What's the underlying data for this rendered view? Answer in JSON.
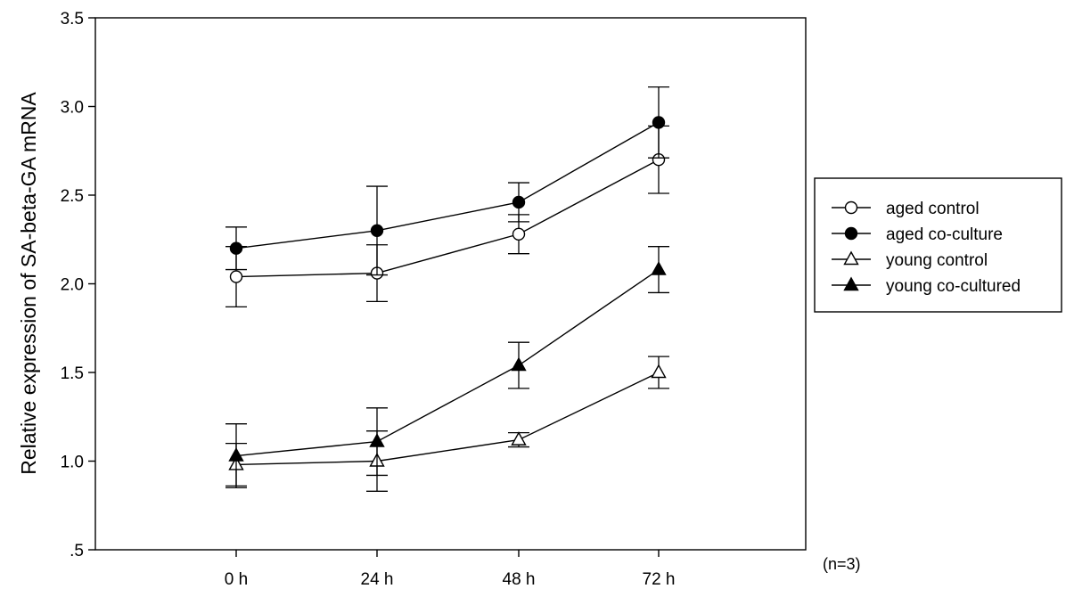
{
  "chart_data": {
    "type": "line",
    "title": "",
    "xlabel": "",
    "ylabel": "Relative expression of SA-beta-GA mRNA",
    "categories": [
      "0 h",
      "24 h",
      "48 h",
      "72 h"
    ],
    "y_ticks": [
      ".5",
      "1.0",
      "1.5",
      "2.0",
      "2.5",
      "3.0",
      "3.5"
    ],
    "ylim": [
      0.5,
      3.5
    ],
    "grid": false,
    "legend_position": "right",
    "note": "(n=3)",
    "series": [
      {
        "name": "aged control",
        "marker": "circle-open",
        "values": [
          2.04,
          2.06,
          2.28,
          2.7
        ],
        "errors": [
          0.17,
          0.16,
          0.11,
          0.19
        ]
      },
      {
        "name": "aged co-culture",
        "marker": "circle-filled",
        "values": [
          2.2,
          2.3,
          2.46,
          2.91
        ],
        "errors": [
          0.12,
          0.25,
          0.11,
          0.2
        ]
      },
      {
        "name": "young control",
        "marker": "triangle-open",
        "values": [
          0.98,
          1.0,
          1.12,
          1.5
        ],
        "errors": [
          0.12,
          0.17,
          0.04,
          0.09
        ]
      },
      {
        "name": "young co-cultured",
        "marker": "triangle-filled",
        "values": [
          1.03,
          1.11,
          1.54,
          2.08
        ],
        "errors": [
          0.18,
          0.19,
          0.13,
          0.13
        ]
      }
    ]
  }
}
